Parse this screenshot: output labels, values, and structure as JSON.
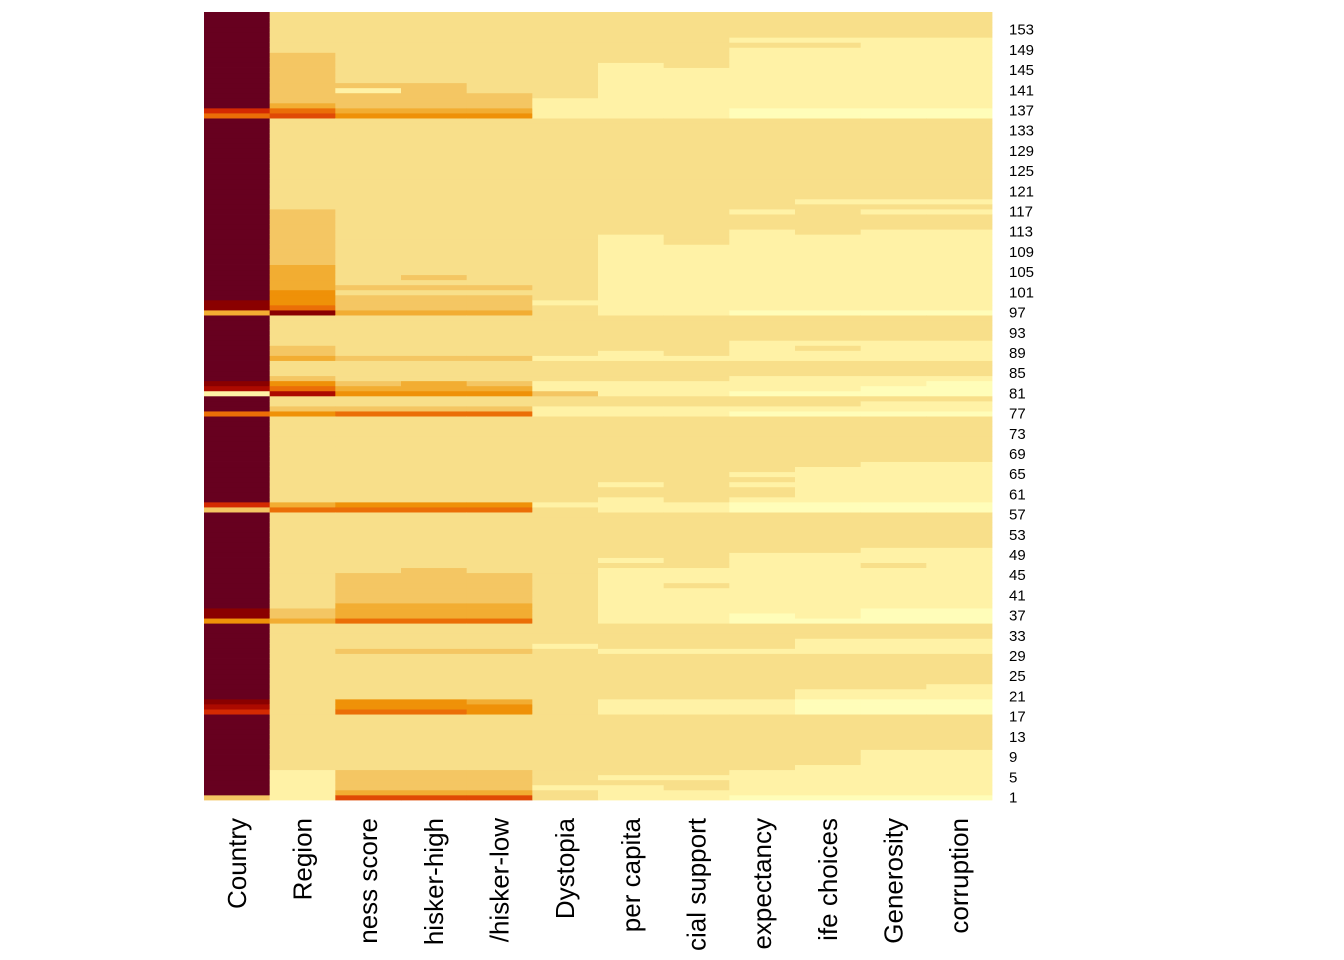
{
  "chart_data": {
    "type": "heatmap",
    "title": "",
    "xlabel": "",
    "ylabel": "",
    "columns": [
      "Country",
      "Region",
      "ness score",
      "hisker-high",
      "/hisker-low",
      "Dystopia",
      "per capita",
      "cial support",
      "expectancy",
      "ife choices",
      "Generosity",
      "corruption"
    ],
    "row_count": 156,
    "row_tick_labels": [
      "1",
      "5",
      "9",
      "13",
      "17",
      "21",
      "25",
      "29",
      "33",
      "37",
      "41",
      "45",
      "49",
      "53",
      "57",
      "61",
      "65",
      "69",
      "73",
      "77",
      "81",
      "85",
      "89",
      "93",
      "97",
      "101",
      "105",
      "109",
      "113",
      "117",
      "121",
      "125",
      "129",
      "133",
      "137",
      "141",
      "145",
      "149",
      "153"
    ],
    "row_ticks_position": "right",
    "grid": false,
    "legend": "none",
    "color_scale_levels": [
      "#FFFDB9",
      "#FFF2A6",
      "#F8DF8A",
      "#F4C663",
      "#F2AD32",
      "#EF9108",
      "#EB6E07",
      "#E04A05",
      "#D42A02",
      "#AC0A00",
      "#8A0000",
      "#67001F"
    ],
    "cells": [
      {
        "default": 11,
        "segments": [
          [
            137,
            137,
            8
          ],
          [
            136,
            136,
            6
          ],
          [
            99,
            98,
            10
          ],
          [
            97,
            97,
            4
          ],
          [
            83,
            83,
            10
          ],
          [
            82,
            82,
            9
          ],
          [
            81,
            81,
            1
          ],
          [
            77,
            77,
            6
          ],
          [
            59,
            59,
            8
          ],
          [
            58,
            58,
            3
          ],
          [
            38,
            37,
            10
          ],
          [
            36,
            36,
            5
          ],
          [
            20,
            20,
            10
          ],
          [
            19,
            19,
            9
          ],
          [
            18,
            18,
            8
          ],
          [
            1,
            1,
            3
          ]
        ]
      },
      {
        "default": 2,
        "segments": [
          [
            148,
            139,
            3
          ],
          [
            138,
            138,
            4
          ],
          [
            137,
            137,
            6
          ],
          [
            136,
            136,
            7
          ],
          [
            117,
            107,
            3
          ],
          [
            106,
            102,
            4
          ],
          [
            101,
            99,
            5
          ],
          [
            98,
            98,
            6
          ],
          [
            97,
            97,
            10
          ],
          [
            90,
            89,
            3
          ],
          [
            88,
            88,
            4
          ],
          [
            84,
            84,
            3
          ],
          [
            83,
            83,
            5
          ],
          [
            82,
            82,
            6
          ],
          [
            81,
            81,
            9
          ],
          [
            78,
            78,
            3
          ],
          [
            77,
            77,
            5
          ],
          [
            59,
            59,
            4
          ],
          [
            58,
            58,
            6
          ],
          [
            38,
            37,
            3
          ],
          [
            36,
            36,
            4
          ],
          [
            6,
            1,
            1
          ]
        ]
      },
      {
        "default": 2,
        "segments": [
          [
            142,
            142,
            3
          ],
          [
            141,
            141,
            1
          ],
          [
            140,
            138,
            3
          ],
          [
            137,
            137,
            4
          ],
          [
            136,
            136,
            5
          ],
          [
            102,
            102,
            3
          ],
          [
            100,
            98,
            3
          ],
          [
            97,
            97,
            4
          ],
          [
            88,
            88,
            3
          ],
          [
            83,
            83,
            3
          ],
          [
            82,
            82,
            4
          ],
          [
            81,
            81,
            5
          ],
          [
            78,
            78,
            3
          ],
          [
            77,
            77,
            6
          ],
          [
            59,
            59,
            5
          ],
          [
            58,
            58,
            6
          ],
          [
            45,
            40,
            3
          ],
          [
            39,
            37,
            4
          ],
          [
            36,
            36,
            6
          ],
          [
            30,
            30,
            3
          ],
          [
            20,
            19,
            5
          ],
          [
            18,
            18,
            6
          ],
          [
            6,
            3,
            3
          ],
          [
            2,
            2,
            4
          ],
          [
            1,
            1,
            7
          ]
        ]
      },
      {
        "default": 2,
        "segments": [
          [
            142,
            138,
            3
          ],
          [
            137,
            137,
            4
          ],
          [
            136,
            136,
            5
          ],
          [
            104,
            104,
            3
          ],
          [
            102,
            102,
            3
          ],
          [
            100,
            98,
            3
          ],
          [
            97,
            97,
            4
          ],
          [
            88,
            88,
            3
          ],
          [
            83,
            82,
            4
          ],
          [
            81,
            81,
            5
          ],
          [
            78,
            78,
            3
          ],
          [
            77,
            77,
            6
          ],
          [
            59,
            59,
            5
          ],
          [
            58,
            58,
            6
          ],
          [
            46,
            40,
            3
          ],
          [
            39,
            37,
            4
          ],
          [
            36,
            36,
            6
          ],
          [
            30,
            30,
            3
          ],
          [
            20,
            19,
            5
          ],
          [
            18,
            18,
            6
          ],
          [
            6,
            3,
            3
          ],
          [
            2,
            2,
            4
          ],
          [
            1,
            1,
            7
          ]
        ]
      },
      {
        "default": 2,
        "segments": [
          [
            140,
            138,
            3
          ],
          [
            137,
            137,
            4
          ],
          [
            136,
            136,
            5
          ],
          [
            102,
            102,
            3
          ],
          [
            100,
            98,
            3
          ],
          [
            97,
            97,
            4
          ],
          [
            88,
            88,
            3
          ],
          [
            83,
            83,
            3
          ],
          [
            82,
            82,
            4
          ],
          [
            81,
            81,
            5
          ],
          [
            78,
            78,
            3
          ],
          [
            77,
            77,
            6
          ],
          [
            59,
            59,
            5
          ],
          [
            58,
            58,
            6
          ],
          [
            45,
            40,
            3
          ],
          [
            39,
            37,
            4
          ],
          [
            36,
            36,
            6
          ],
          [
            30,
            30,
            3
          ],
          [
            20,
            20,
            4
          ],
          [
            19,
            18,
            5
          ],
          [
            6,
            3,
            3
          ],
          [
            2,
            2,
            4
          ],
          [
            1,
            1,
            7
          ]
        ]
      },
      {
        "default": 2,
        "segments": [
          [
            139,
            136,
            1
          ],
          [
            99,
            99,
            1
          ],
          [
            88,
            88,
            1
          ],
          [
            83,
            82,
            1
          ],
          [
            81,
            81,
            3
          ],
          [
            78,
            77,
            1
          ],
          [
            59,
            59,
            1
          ],
          [
            31,
            31,
            1
          ],
          [
            3,
            3,
            1
          ]
        ]
      },
      {
        "default": 2,
        "segments": [
          [
            146,
            136,
            1
          ],
          [
            112,
            97,
            1
          ],
          [
            89,
            88,
            1
          ],
          [
            83,
            81,
            1
          ],
          [
            78,
            77,
            1
          ],
          [
            63,
            63,
            1
          ],
          [
            60,
            58,
            1
          ],
          [
            48,
            48,
            1
          ],
          [
            46,
            36,
            1
          ],
          [
            30,
            30,
            1
          ],
          [
            20,
            18,
            1
          ],
          [
            5,
            5,
            1
          ],
          [
            3,
            1,
            1
          ]
        ]
      },
      {
        "default": 2,
        "segments": [
          [
            145,
            136,
            1
          ],
          [
            110,
            97,
            1
          ],
          [
            88,
            88,
            1
          ],
          [
            83,
            81,
            1
          ],
          [
            78,
            77,
            1
          ],
          [
            59,
            58,
            1
          ],
          [
            46,
            44,
            1
          ],
          [
            42,
            36,
            1
          ],
          [
            30,
            30,
            1
          ],
          [
            20,
            18,
            1
          ],
          [
            5,
            5,
            1
          ],
          [
            2,
            1,
            1
          ]
        ]
      },
      {
        "default": 2,
        "segments": [
          [
            151,
            151,
            1
          ],
          [
            149,
            138,
            1
          ],
          [
            137,
            136,
            0
          ],
          [
            117,
            117,
            1
          ],
          [
            113,
            98,
            1
          ],
          [
            97,
            97,
            0
          ],
          [
            91,
            88,
            1
          ],
          [
            84,
            82,
            1
          ],
          [
            81,
            81,
            0
          ],
          [
            78,
            78,
            1
          ],
          [
            77,
            77,
            0
          ],
          [
            65,
            65,
            1
          ],
          [
            63,
            63,
            1
          ],
          [
            60,
            60,
            1
          ],
          [
            59,
            58,
            0
          ],
          [
            49,
            38,
            1
          ],
          [
            37,
            36,
            0
          ],
          [
            30,
            30,
            1
          ],
          [
            20,
            18,
            1
          ],
          [
            6,
            2,
            1
          ],
          [
            1,
            1,
            0
          ]
        ]
      },
      {
        "default": 2,
        "segments": [
          [
            151,
            151,
            1
          ],
          [
            149,
            138,
            1
          ],
          [
            137,
            136,
            0
          ],
          [
            119,
            119,
            1
          ],
          [
            112,
            98,
            1
          ],
          [
            97,
            97,
            0
          ],
          [
            91,
            91,
            1
          ],
          [
            89,
            88,
            1
          ],
          [
            84,
            82,
            1
          ],
          [
            81,
            81,
            0
          ],
          [
            78,
            78,
            1
          ],
          [
            77,
            77,
            0
          ],
          [
            66,
            60,
            1
          ],
          [
            59,
            58,
            0
          ],
          [
            49,
            37,
            1
          ],
          [
            36,
            36,
            0
          ],
          [
            32,
            30,
            1
          ],
          [
            22,
            21,
            1
          ],
          [
            20,
            18,
            0
          ],
          [
            7,
            2,
            1
          ],
          [
            1,
            1,
            0
          ]
        ]
      },
      {
        "default": 2,
        "segments": [
          [
            151,
            138,
            1
          ],
          [
            137,
            136,
            0
          ],
          [
            119,
            119,
            1
          ],
          [
            117,
            117,
            1
          ],
          [
            113,
            98,
            1
          ],
          [
            97,
            97,
            0
          ],
          [
            91,
            88,
            1
          ],
          [
            84,
            83,
            1
          ],
          [
            82,
            81,
            0
          ],
          [
            79,
            78,
            1
          ],
          [
            77,
            77,
            0
          ],
          [
            67,
            60,
            1
          ],
          [
            59,
            58,
            0
          ],
          [
            50,
            48,
            1
          ],
          [
            46,
            39,
            1
          ],
          [
            38,
            36,
            0
          ],
          [
            32,
            30,
            1
          ],
          [
            22,
            21,
            1
          ],
          [
            20,
            18,
            0
          ],
          [
            10,
            2,
            1
          ],
          [
            1,
            1,
            0
          ]
        ]
      },
      {
        "default": 2,
        "segments": [
          [
            151,
            138,
            1
          ],
          [
            137,
            136,
            0
          ],
          [
            119,
            119,
            1
          ],
          [
            117,
            117,
            1
          ],
          [
            113,
            98,
            1
          ],
          [
            97,
            97,
            0
          ],
          [
            91,
            88,
            1
          ],
          [
            84,
            84,
            1
          ],
          [
            83,
            81,
            0
          ],
          [
            79,
            78,
            1
          ],
          [
            77,
            77,
            0
          ],
          [
            67,
            60,
            1
          ],
          [
            59,
            58,
            0
          ],
          [
            50,
            39,
            1
          ],
          [
            38,
            36,
            0
          ],
          [
            32,
            30,
            1
          ],
          [
            23,
            21,
            1
          ],
          [
            20,
            18,
            0
          ],
          [
            10,
            2,
            1
          ],
          [
            1,
            1,
            0
          ]
        ]
      }
    ]
  }
}
